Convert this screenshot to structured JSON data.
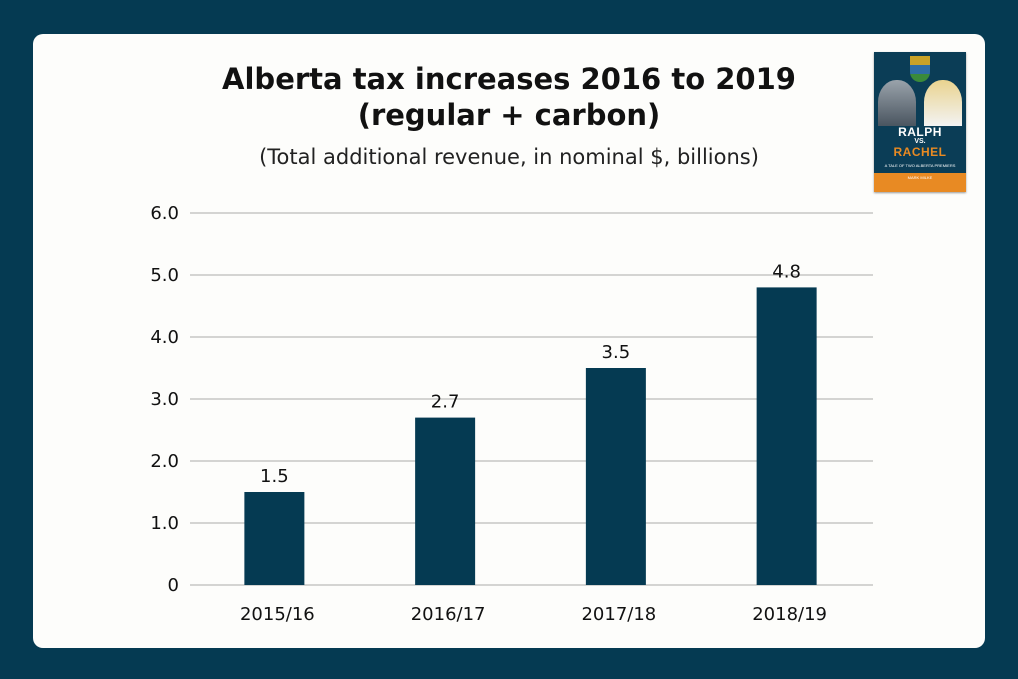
{
  "colors": {
    "background": "#053a52",
    "card": "#fdfdfb",
    "bar": "#053a52",
    "grid": "#aaaaaa",
    "book_accent": "#e88a23"
  },
  "chart_data": {
    "type": "bar",
    "title": "Alberta tax increases 2016 to 2019",
    "title_line2": "(regular + carbon)",
    "subtitle": "(Total additional revenue, in nominal $, billions)",
    "categories": [
      "2015/16",
      "2016/17",
      "2017/18",
      "2018/19"
    ],
    "values": [
      1.5,
      2.7,
      3.5,
      4.8
    ],
    "data_labels": [
      "1.5",
      "2.7",
      "3.5",
      "4.8"
    ],
    "yticks": [
      0,
      1.0,
      2.0,
      3.0,
      4.0,
      5.0,
      6.0
    ],
    "ytick_labels": [
      "0",
      "1.0",
      "2.0",
      "3.0",
      "4.0",
      "5.0",
      "6.0"
    ],
    "ylim": [
      0,
      6
    ],
    "xlabel": "",
    "ylabel": "",
    "grid": true,
    "legend": "none"
  },
  "book_cover": {
    "title_top": "RALPH",
    "title_mid": "VS.",
    "title_bottom": "RACHEL",
    "tagline": "A TALE OF TWO ALBERTA PREMIERS",
    "author": "MARK MILKE"
  }
}
